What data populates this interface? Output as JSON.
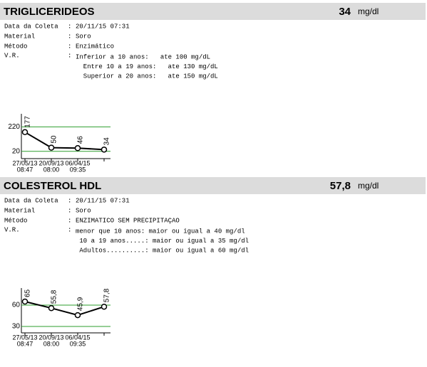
{
  "separator": ":",
  "sections": [
    {
      "title": "TRIGLICERIDEOS",
      "result": "34",
      "unit": "mg/dl",
      "fields": [
        {
          "label": "Data da Coleta",
          "value": "20/11/15 07:31"
        },
        {
          "label": "Material",
          "value": "Soro"
        },
        {
          "label": "Método",
          "value": "Enzimático"
        }
      ],
      "reference_label": "V.R.",
      "reference_lines": [
        "Inferior a 10 anos:   ate 100 mg/dL",
        "  Entre 10 a 19 anos:   ate 130 mg/dL",
        "  Superior a 20 anos:   ate 150 mg/dL"
      ],
      "chart": {
        "type": "line",
        "categories": [
          "27/05/13",
          "20/09/13",
          "06/04/15",
          null
        ],
        "times": [
          "08:47",
          "08:00",
          "09:35",
          null
        ],
        "values": [
          177,
          50,
          46,
          34
        ],
        "color": "#000000",
        "reference_color": "#2e9e2e",
        "ylim": [
          -40,
          310
        ],
        "yticks": [
          20,
          220
        ]
      }
    },
    {
      "title": "COLESTEROL HDL",
      "result": "57,8",
      "unit": "mg/dl",
      "fields": [
        {
          "label": "Data da Coleta",
          "value": "20/11/15 07:31"
        },
        {
          "label": "Material",
          "value": "Soro"
        },
        {
          "label": "Método",
          "value": "ENZIMATICO SEM PRECIPITAÇAO"
        }
      ],
      "reference_label": "V.R.",
      "reference_lines": [
        "menor que 10 anos: maior ou igual a 40 mg/dl",
        " 10 a 19 anos.....: maior ou igual a 35 mg/dl",
        " Adultos..........: maior ou igual a 60 mg/dl"
      ],
      "chart": {
        "type": "line",
        "categories": [
          "27/05/13",
          "20/09/13",
          "06/04/15",
          null
        ],
        "times": [
          "08:47",
          "08:00",
          "09:35",
          null
        ],
        "values": [
          65,
          55.8,
          45.9,
          57.8
        ],
        "value_labels": [
          "65",
          "55,8",
          "45,9",
          "57,8"
        ],
        "color": "#000000",
        "reference_color": "#2e9e2e",
        "ylim": [
          21,
          81
        ],
        "yticks": [
          30,
          60
        ]
      }
    }
  ]
}
